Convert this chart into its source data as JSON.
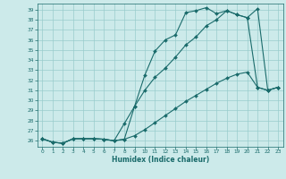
{
  "xlabel": "Humidex (Indice chaleur)",
  "bg_color": "#cceaea",
  "grid_color": "#99cccc",
  "line_color": "#1a6b6b",
  "xlim": [
    -0.5,
    23.5
  ],
  "ylim": [
    25.4,
    39.6
  ],
  "xticks": [
    0,
    1,
    2,
    3,
    4,
    5,
    6,
    7,
    8,
    9,
    10,
    11,
    12,
    13,
    14,
    15,
    16,
    17,
    18,
    19,
    20,
    21,
    22,
    23
  ],
  "yticks": [
    26,
    27,
    28,
    29,
    30,
    31,
    32,
    33,
    34,
    35,
    36,
    37,
    38,
    39
  ],
  "curve1_x": [
    0,
    1,
    2,
    3,
    4,
    5,
    6,
    7,
    8,
    9,
    10,
    11,
    12,
    13,
    14,
    15,
    16,
    17,
    18,
    19,
    20,
    21,
    22,
    23
  ],
  "curve1_y": [
    26.2,
    25.85,
    25.75,
    26.2,
    26.2,
    26.2,
    26.15,
    26.0,
    26.15,
    29.4,
    32.5,
    34.9,
    36.0,
    36.5,
    38.7,
    38.9,
    39.2,
    38.6,
    38.9,
    38.5,
    38.2,
    39.1,
    31.0,
    31.3
  ],
  "curve2_x": [
    0,
    1,
    2,
    3,
    4,
    5,
    6,
    7,
    8,
    9,
    10,
    11,
    12,
    13,
    14,
    15,
    16,
    17,
    18,
    19,
    20,
    21,
    22,
    23
  ],
  "curve2_y": [
    26.2,
    25.85,
    25.75,
    26.2,
    26.2,
    26.2,
    26.15,
    26.0,
    26.15,
    26.5,
    27.1,
    27.8,
    28.5,
    29.2,
    29.9,
    30.5,
    31.1,
    31.7,
    32.2,
    32.6,
    32.8,
    31.3,
    31.0,
    31.3
  ],
  "curve3_x": [
    0,
    1,
    2,
    3,
    4,
    5,
    6,
    7,
    8,
    9,
    10,
    11,
    12,
    13,
    14,
    15,
    16,
    17,
    18,
    19,
    20,
    21,
    22,
    23
  ],
  "curve3_y": [
    26.2,
    25.85,
    25.75,
    26.2,
    26.2,
    26.2,
    26.15,
    26.0,
    27.7,
    29.4,
    31.0,
    32.3,
    33.2,
    34.3,
    35.5,
    36.3,
    37.4,
    38.0,
    38.9,
    38.5,
    38.2,
    31.3,
    31.0,
    31.3
  ]
}
